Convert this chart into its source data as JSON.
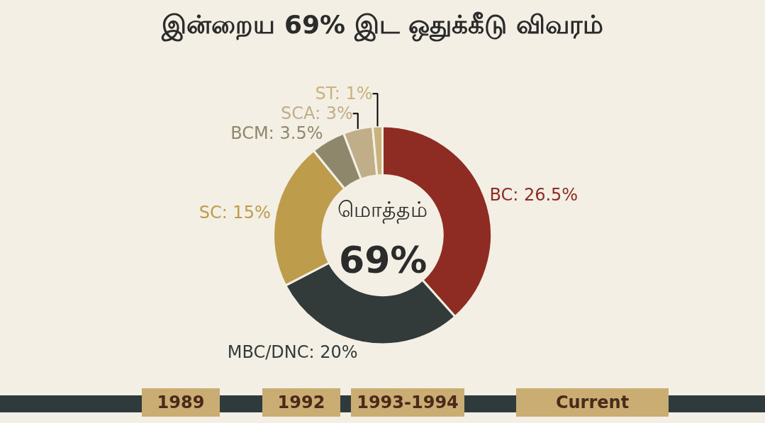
{
  "chart_data": {
    "type": "donut",
    "title": "இன்றைய 69% இட ஒதுக்கீடு விவரம்",
    "categories": [
      "BC",
      "MBC/DNC",
      "SC",
      "BCM",
      "SCA",
      "ST"
    ],
    "values": [
      26.5,
      20,
      15,
      3.5,
      3,
      1
    ],
    "colors": [
      "#8e2b22",
      "#333a3a",
      "#bd9c4c",
      "#8f876b",
      "#bfae88",
      "#c9b27c"
    ],
    "value_labels": [
      "26.5%",
      "20%",
      "15%",
      "3.5%",
      "3%",
      "1%"
    ],
    "annotations": [
      "மொத்தம்",
      "69%",
      "1989",
      "1992",
      "1993-1994",
      "Current"
    ],
    "legend": false
  }
}
